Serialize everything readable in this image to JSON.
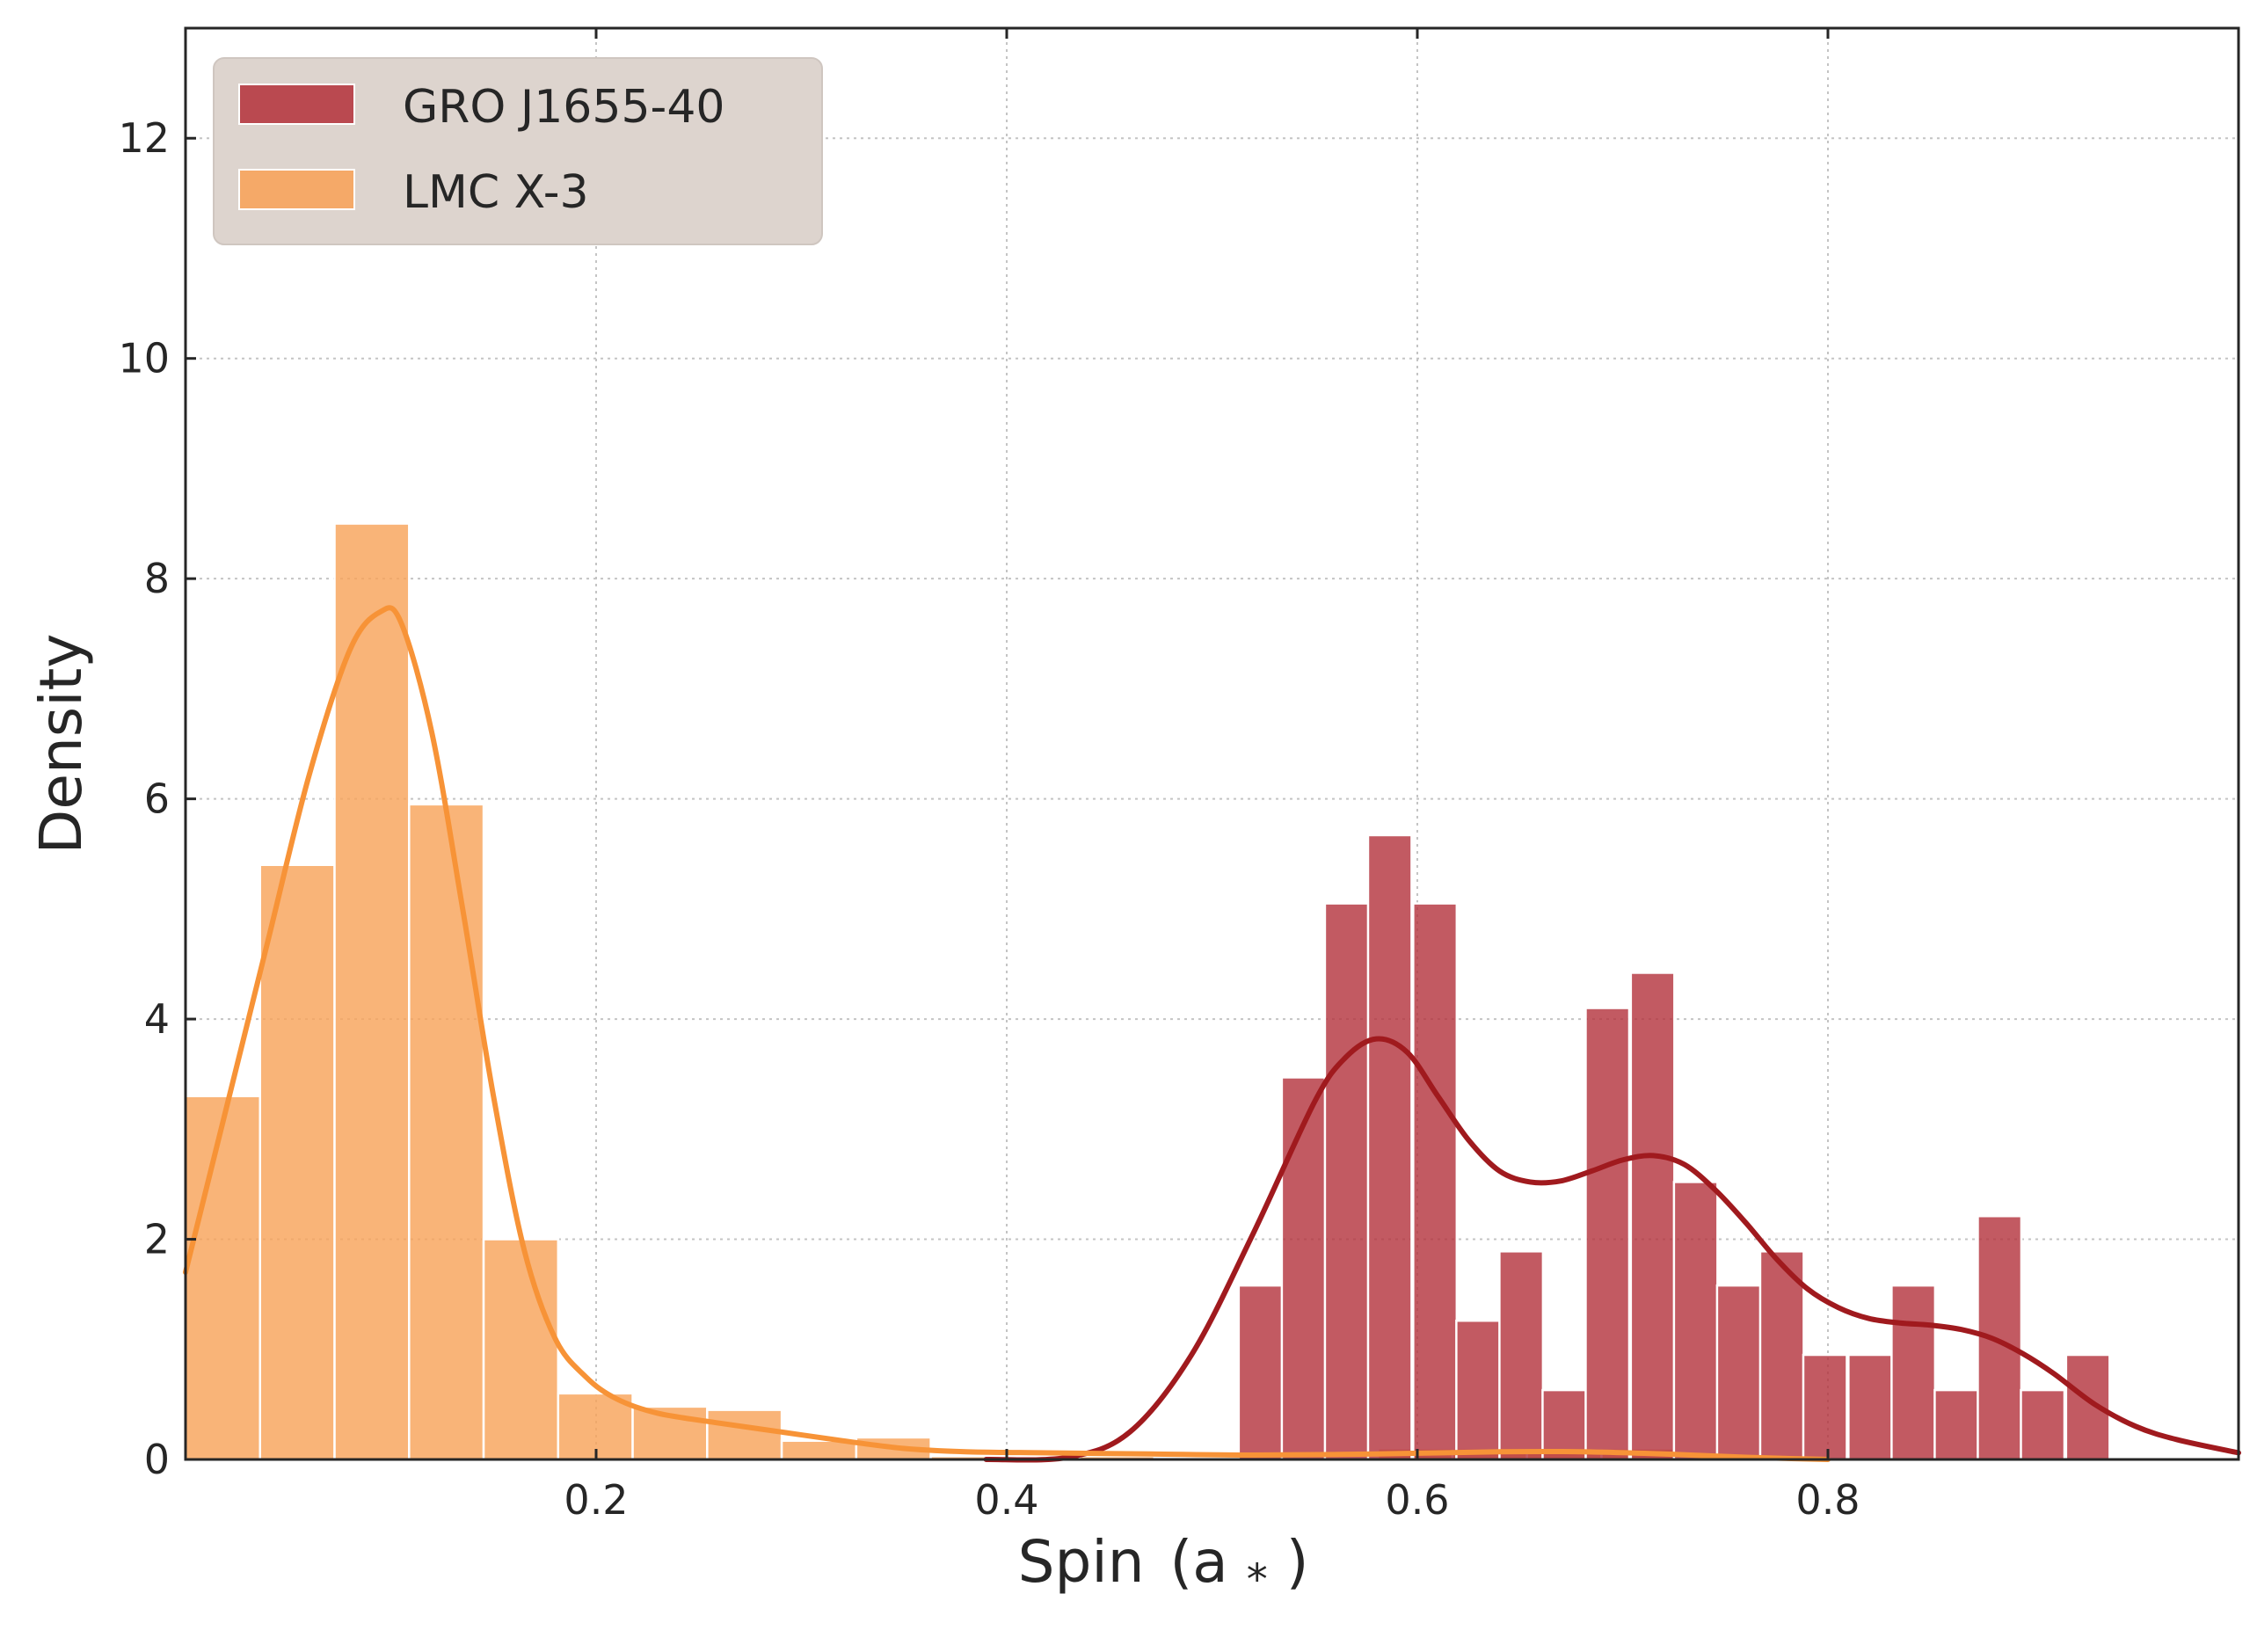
{
  "chart_data": {
    "type": "bar",
    "title": "",
    "xlabel": "Spin (a*)",
    "xlabel_main": "Spin",
    "xlabel_symbol": "(a",
    "xlabel_sub": "*",
    "xlabel_close": ")",
    "ylabel": "Density",
    "xlim": [
      0.0,
      1.0
    ],
    "ylim": [
      0,
      13
    ],
    "xticks": [
      0.2,
      0.4,
      0.6,
      0.8
    ],
    "xtick_labels": [
      "0.2",
      "0.4",
      "0.6",
      "0.8"
    ],
    "yticks": [
      0,
      2,
      4,
      6,
      8,
      10,
      12
    ],
    "ytick_labels": [
      "0",
      "2",
      "4",
      "6",
      "8",
      "10",
      "12"
    ],
    "grid": true,
    "legend_position": "top-left",
    "series": [
      {
        "name": "GRO J1655-40",
        "color": "#b5363f",
        "kde_color": "#a01a1e",
        "bin_width": 0.0212,
        "bins": [
          {
            "x0": 0.513,
            "y": 1.58
          },
          {
            "x0": 0.534,
            "y": 3.47
          },
          {
            "x0": 0.555,
            "y": 5.05
          },
          {
            "x0": 0.576,
            "y": 5.67
          },
          {
            "x0": 0.598,
            "y": 5.05
          },
          {
            "x0": 0.619,
            "y": 1.26
          },
          {
            "x0": 0.64,
            "y": 1.89
          },
          {
            "x0": 0.661,
            "y": 0.63
          },
          {
            "x0": 0.682,
            "y": 4.1
          },
          {
            "x0": 0.704,
            "y": 4.42
          },
          {
            "x0": 0.725,
            "y": 2.52
          },
          {
            "x0": 0.746,
            "y": 1.58
          },
          {
            "x0": 0.767,
            "y": 1.89
          },
          {
            "x0": 0.788,
            "y": 0.95
          },
          {
            "x0": 0.81,
            "y": 0.95
          },
          {
            "x0": 0.831,
            "y": 1.58
          },
          {
            "x0": 0.852,
            "y": 0.63
          },
          {
            "x0": 0.873,
            "y": 2.21
          },
          {
            "x0": 0.894,
            "y": 0.63
          },
          {
            "x0": 0.916,
            "y": 0.95
          }
        ],
        "kde": [
          [
            0.39,
            0.0
          ],
          [
            0.43,
            0.02
          ],
          [
            0.46,
            0.25
          ],
          [
            0.49,
            0.95
          ],
          [
            0.52,
            2.05
          ],
          [
            0.55,
            3.25
          ],
          [
            0.565,
            3.65
          ],
          [
            0.58,
            3.82
          ],
          [
            0.595,
            3.7
          ],
          [
            0.61,
            3.3
          ],
          [
            0.625,
            2.9
          ],
          [
            0.64,
            2.62
          ],
          [
            0.655,
            2.52
          ],
          [
            0.67,
            2.53
          ],
          [
            0.685,
            2.62
          ],
          [
            0.7,
            2.72
          ],
          [
            0.715,
            2.76
          ],
          [
            0.73,
            2.68
          ],
          [
            0.745,
            2.45
          ],
          [
            0.76,
            2.15
          ],
          [
            0.775,
            1.82
          ],
          [
            0.79,
            1.55
          ],
          [
            0.805,
            1.38
          ],
          [
            0.82,
            1.28
          ],
          [
            0.835,
            1.24
          ],
          [
            0.85,
            1.22
          ],
          [
            0.865,
            1.18
          ],
          [
            0.88,
            1.1
          ],
          [
            0.895,
            0.96
          ],
          [
            0.91,
            0.78
          ],
          [
            0.93,
            0.5
          ],
          [
            0.95,
            0.3
          ],
          [
            0.97,
            0.18
          ],
          [
            1.0,
            0.06
          ]
        ]
      },
      {
        "name": "LMC X-3",
        "color": "#f8a35a",
        "kde_color": "#f79337",
        "bin_width": 0.0363,
        "bins": [
          {
            "x0": 0.0,
            "y": 3.3
          },
          {
            "x0": 0.0363,
            "y": 5.4
          },
          {
            "x0": 0.0726,
            "y": 8.5
          },
          {
            "x0": 0.1089,
            "y": 5.95
          },
          {
            "x0": 0.1452,
            "y": 2.0
          },
          {
            "x0": 0.1815,
            "y": 0.6
          },
          {
            "x0": 0.2178,
            "y": 0.48
          },
          {
            "x0": 0.2541,
            "y": 0.45
          },
          {
            "x0": 0.2904,
            "y": 0.17
          },
          {
            "x0": 0.3267,
            "y": 0.2
          },
          {
            "x0": 0.363,
            "y": 0.03
          },
          {
            "x0": 0.3993,
            "y": 0.03
          },
          {
            "x0": 0.4356,
            "y": 0.03
          },
          {
            "x0": 0.4719,
            "y": 0.02
          },
          {
            "x0": 0.5082,
            "y": 0.02
          },
          {
            "x0": 0.5445,
            "y": 0.02
          },
          {
            "x0": 0.5808,
            "y": 0.1
          },
          {
            "x0": 0.6171,
            "y": 0.1
          },
          {
            "x0": 0.6534,
            "y": 0.1
          },
          {
            "x0": 0.6897,
            "y": 0.1
          },
          {
            "x0": 0.726,
            "y": 0.02
          }
        ],
        "kde": [
          [
            0.0,
            1.7
          ],
          [
            0.02,
            3.2
          ],
          [
            0.04,
            4.7
          ],
          [
            0.06,
            6.2
          ],
          [
            0.08,
            7.35
          ],
          [
            0.095,
            7.7
          ],
          [
            0.105,
            7.6
          ],
          [
            0.12,
            6.6
          ],
          [
            0.135,
            5.0
          ],
          [
            0.15,
            3.3
          ],
          [
            0.165,
            1.9
          ],
          [
            0.18,
            1.1
          ],
          [
            0.195,
            0.75
          ],
          [
            0.21,
            0.55
          ],
          [
            0.23,
            0.42
          ],
          [
            0.26,
            0.33
          ],
          [
            0.29,
            0.25
          ],
          [
            0.32,
            0.17
          ],
          [
            0.35,
            0.1
          ],
          [
            0.38,
            0.07
          ],
          [
            0.42,
            0.06
          ],
          [
            0.47,
            0.05
          ],
          [
            0.52,
            0.04
          ],
          [
            0.58,
            0.05
          ],
          [
            0.64,
            0.07
          ],
          [
            0.68,
            0.07
          ],
          [
            0.72,
            0.05
          ],
          [
            0.76,
            0.02
          ],
          [
            0.8,
            0.0
          ]
        ]
      }
    ]
  }
}
